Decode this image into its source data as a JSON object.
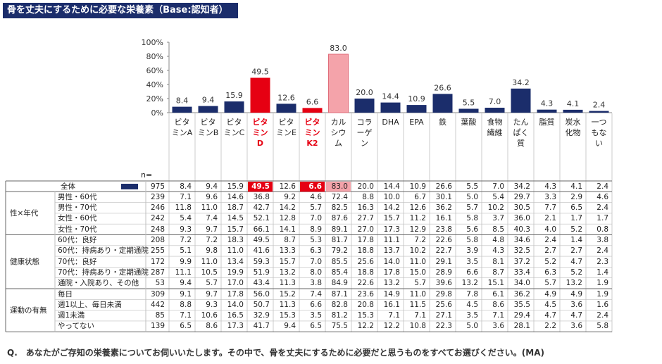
{
  "title": "骨を丈夫にするために必要な栄養素（Base:認知者）",
  "n_label": "n=",
  "question": "Q.　あなたがご存知の栄養素についてお伺いいたします。その中で、骨を丈夫にするために必要だと思うものをすべてお選びください。(MA)",
  "colors": {
    "bar": "#1b2d6b",
    "highlight_red": "#e60012",
    "highlight_pink": "#f4a3aa",
    "title_bg": "#1b2d6b",
    "grid": "#bfbfbf"
  },
  "chart_data": {
    "type": "bar",
    "title": "骨を丈夫にするために必要な栄養素（Base:認知者）",
    "categories": [
      "ビタミンA",
      "ビタミンB",
      "ビタミンC",
      "ビタミンD",
      "ビタミンE",
      "ビタミンK2",
      "カルシウム",
      "コラーゲン",
      "DHA",
      "EPA",
      "鉄",
      "葉酸",
      "食物繊維",
      "たんぱく質",
      "脂質",
      "炭水化物",
      "一つもない"
    ],
    "values": [
      8.4,
      9.4,
      15.9,
      49.5,
      12.6,
      6.6,
      83.0,
      20.0,
      14.4,
      10.9,
      26.6,
      5.5,
      7.0,
      34.2,
      4.3,
      4.1,
      2.4
    ],
    "value_labels": [
      "8.4",
      "9.4",
      "15.9",
      "49.5",
      "12.6",
      "6.6",
      "83.0",
      "20.0",
      "14.4",
      "10.9",
      "26.6",
      "5.5",
      "7.0",
      "34.2",
      "4.3",
      "4.1",
      "2.4"
    ],
    "highlight": {
      "red": [
        3,
        5
      ],
      "pink": [
        6
      ]
    },
    "red_labels": [
      3,
      5
    ],
    "yticks": [
      "0%",
      "20%",
      "40%",
      "60%",
      "80%",
      "100%"
    ],
    "ylim": [
      0,
      100
    ],
    "grid": false
  },
  "table": {
    "rows": [
      {
        "group": "",
        "label": "全体",
        "legend": true,
        "n": "975",
        "values": [
          "8.4",
          "9.4",
          "15.9",
          "49.5",
          "12.6",
          "6.6",
          "83.0",
          "20.0",
          "14.4",
          "10.9",
          "26.6",
          "5.5",
          "7.0",
          "34.2",
          "4.3",
          "4.1",
          "2.4"
        ]
      },
      {
        "group": "性×年代",
        "label": "男性・60代",
        "n": "239",
        "values": [
          "7.1",
          "9.6",
          "14.6",
          "36.8",
          "9.2",
          "4.6",
          "72.4",
          "8.8",
          "10.0",
          "6.7",
          "30.1",
          "5.0",
          "5.4",
          "29.7",
          "3.3",
          "2.9",
          "4.6"
        ]
      },
      {
        "group": "",
        "label": "男性・70代",
        "n": "246",
        "values": [
          "11.8",
          "11.0",
          "18.7",
          "42.7",
          "14.2",
          "5.7",
          "82.5",
          "16.3",
          "14.2",
          "12.6",
          "36.2",
          "5.7",
          "10.2",
          "30.5",
          "7.7",
          "6.5",
          "2.4"
        ]
      },
      {
        "group": "",
        "label": "女性・60代",
        "n": "242",
        "values": [
          "5.4",
          "7.4",
          "14.5",
          "52.1",
          "12.8",
          "7.0",
          "87.6",
          "27.7",
          "15.7",
          "11.2",
          "16.1",
          "5.8",
          "3.7",
          "36.0",
          "2.1",
          "1.7",
          "1.7"
        ]
      },
      {
        "group": "",
        "label": "女性・70代",
        "n": "248",
        "values": [
          "9.3",
          "9.7",
          "15.7",
          "66.1",
          "14.1",
          "8.9",
          "89.1",
          "27.0",
          "17.3",
          "12.9",
          "23.8",
          "5.6",
          "8.5",
          "40.3",
          "4.0",
          "5.2",
          "0.8"
        ]
      },
      {
        "group": "健康状態",
        "label": "60代：良好",
        "n": "208",
        "values": [
          "7.2",
          "7.2",
          "18.3",
          "49.5",
          "8.7",
          "5.3",
          "81.7",
          "17.8",
          "11.1",
          "7.2",
          "22.6",
          "5.8",
          "4.8",
          "34.6",
          "2.4",
          "1.4",
          "3.8"
        ]
      },
      {
        "group": "",
        "label": "60代：持病あり・定期通院",
        "n": "255",
        "values": [
          "5.1",
          "9.8",
          "11.0",
          "41.6",
          "13.3",
          "6.3",
          "79.2",
          "18.8",
          "13.7",
          "10.2",
          "22.7",
          "3.9",
          "4.3",
          "32.5",
          "2.7",
          "2.7",
          "2.4"
        ]
      },
      {
        "group": "",
        "label": "70代：良好",
        "n": "172",
        "values": [
          "9.9",
          "11.0",
          "13.4",
          "59.3",
          "15.7",
          "7.0",
          "85.5",
          "25.6",
          "14.0",
          "11.0",
          "29.1",
          "3.5",
          "8.1",
          "37.2",
          "5.2",
          "4.7",
          "2.3"
        ]
      },
      {
        "group": "",
        "label": "70代：持病あり・定期通院",
        "n": "287",
        "values": [
          "11.1",
          "10.5",
          "19.9",
          "51.9",
          "13.2",
          "8.0",
          "85.4",
          "18.8",
          "17.8",
          "15.0",
          "28.9",
          "6.6",
          "8.7",
          "33.4",
          "6.3",
          "5.2",
          "1.4"
        ]
      },
      {
        "group": "",
        "label": "通院・入院あり、その他",
        "n": "53",
        "values": [
          "9.4",
          "5.7",
          "17.0",
          "43.4",
          "11.3",
          "3.8",
          "84.9",
          "22.6",
          "13.2",
          "5.7",
          "39.6",
          "13.2",
          "15.1",
          "34.0",
          "5.7",
          "13.2",
          "1.9"
        ]
      },
      {
        "group": "運動の有無",
        "label": "毎日",
        "n": "309",
        "values": [
          "9.1",
          "9.7",
          "17.8",
          "56.0",
          "15.2",
          "7.4",
          "87.1",
          "23.6",
          "14.9",
          "11.0",
          "29.8",
          "7.8",
          "6.1",
          "36.2",
          "4.9",
          "4.9",
          "1.9"
        ]
      },
      {
        "group": "",
        "label": "週1以上、毎日未満",
        "n": "442",
        "values": [
          "8.8",
          "9.3",
          "14.0",
          "50.7",
          "11.3",
          "6.6",
          "82.8",
          "20.8",
          "16.1",
          "11.5",
          "25.6",
          "4.5",
          "8.6",
          "35.5",
          "4.5",
          "3.6",
          "1.6"
        ]
      },
      {
        "group": "",
        "label": "週1未満",
        "n": "85",
        "values": [
          "7.1",
          "10.6",
          "16.5",
          "32.9",
          "15.3",
          "3.5",
          "81.2",
          "15.3",
          "7.1",
          "7.1",
          "27.1",
          "3.5",
          "7.1",
          "29.4",
          "4.7",
          "4.7",
          "2.4"
        ]
      },
      {
        "group": "",
        "label": "やってない",
        "n": "139",
        "values": [
          "6.5",
          "8.6",
          "17.3",
          "41.7",
          "9.4",
          "6.5",
          "75.5",
          "12.2",
          "12.2",
          "10.8",
          "22.3",
          "5.0",
          "3.6",
          "28.1",
          "2.2",
          "3.6",
          "5.8"
        ]
      }
    ]
  }
}
